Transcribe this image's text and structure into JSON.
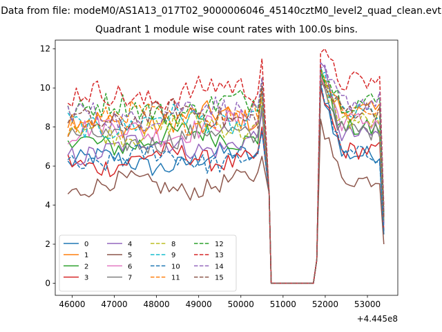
{
  "figure": {
    "suptitle": "Data from file: modeM0/AS1A13_017T02_9000006046_45140cztM0_level2_quad_clean.evt",
    "title": "Quadrant 1 module wise count rates with 100.0s bins.",
    "x_offset_label": "+4.445e8"
  },
  "chart_data": {
    "type": "line",
    "title": "Quadrant 1 module wise count rates with 100.0s bins.",
    "xlabel": "",
    "ylabel": "",
    "x_offset": 444500000,
    "xlim": [
      45600,
      53720
    ],
    "ylim": [
      -0.62,
      12.45
    ],
    "xticks": [
      46000,
      47000,
      48000,
      49000,
      50000,
      51000,
      52000,
      53000
    ],
    "xtick_labels": [
      "46000",
      "47000",
      "48000",
      "49000",
      "50000",
      "51000",
      "52000",
      "53000"
    ],
    "yticks": [
      0,
      2,
      4,
      6,
      8,
      10,
      12
    ],
    "ytick_labels": [
      "0",
      "2",
      "4",
      "6",
      "8",
      "10",
      "12"
    ],
    "segments": {
      "seg1": {
        "start": 45900,
        "step": 100,
        "count": 47
      },
      "gap": [
        [
          50670,
          4.6
        ],
        [
          50720,
          0.0
        ],
        [
          51720,
          0.0
        ],
        [
          51800,
          1.2
        ]
      ],
      "seg2": {
        "start": 51890,
        "step": 100,
        "count": 16
      }
    },
    "legend": {
      "placement": "lower left",
      "columns": 4
    },
    "series": [
      {
        "name": "0",
        "color": "#1f77b4",
        "dashed": false,
        "level1": 6.1,
        "level2": 6.6,
        "peak": 10.2,
        "end": 2.5
      },
      {
        "name": "1",
        "color": "#ff7f0e",
        "dashed": false,
        "level1": 8.1,
        "level2": 8.8,
        "peak": 10.5,
        "end": 3.4
      },
      {
        "name": "2",
        "color": "#2ca02c",
        "dashed": false,
        "level1": 7.2,
        "level2": 7.9,
        "peak": 10.8,
        "end": 3.1
      },
      {
        "name": "3",
        "color": "#d62728",
        "dashed": false,
        "level1": 6.2,
        "level2": 6.8,
        "peak": 10.0,
        "end": 2.7
      },
      {
        "name": "4",
        "color": "#9467bd",
        "dashed": false,
        "level1": 6.8,
        "level2": 7.6,
        "peak": 11.3,
        "end": 3.0
      },
      {
        "name": "5",
        "color": "#8c564b",
        "dashed": false,
        "level1": 4.9,
        "level2": 5.3,
        "peak": 8.4,
        "end": 2.0
      },
      {
        "name": "6",
        "color": "#e377c2",
        "dashed": false,
        "level1": 7.7,
        "level2": 8.3,
        "peak": 10.6,
        "end": 3.3
      },
      {
        "name": "7",
        "color": "#7f7f7f",
        "dashed": false,
        "level1": 7.3,
        "level2": 7.8,
        "peak": 10.4,
        "end": 3.2
      },
      {
        "name": "8",
        "color": "#bcbd22",
        "dashed": true,
        "level1": 7.8,
        "level2": 8.3,
        "peak": 10.5,
        "end": 3.3
      },
      {
        "name": "9",
        "color": "#17becf",
        "dashed": true,
        "level1": 8.1,
        "level2": 8.7,
        "peak": 10.7,
        "end": 3.5
      },
      {
        "name": "10",
        "color": "#1f77b4",
        "dashed": true,
        "level1": 6.3,
        "level2": 6.6,
        "peak": 10.3,
        "end": 2.6
      },
      {
        "name": "11",
        "color": "#ff7f0e",
        "dashed": true,
        "level1": 8.3,
        "level2": 8.9,
        "peak": 10.9,
        "end": 3.5
      },
      {
        "name": "12",
        "color": "#2ca02c",
        "dashed": true,
        "level1": 8.8,
        "level2": 9.3,
        "peak": 11.1,
        "end": 3.6
      },
      {
        "name": "13",
        "color": "#d62728",
        "dashed": true,
        "level1": 9.4,
        "level2": 10.3,
        "peak": 11.8,
        "end": 3.9
      },
      {
        "name": "14",
        "color": "#9467bd",
        "dashed": true,
        "level1": 8.5,
        "level2": 9.3,
        "peak": 11.0,
        "end": 3.6
      },
      {
        "name": "15",
        "color": "#8c564b",
        "dashed": true,
        "level1": 8.4,
        "level2": 8.9,
        "peak": 10.2,
        "end": 3.4
      }
    ]
  }
}
